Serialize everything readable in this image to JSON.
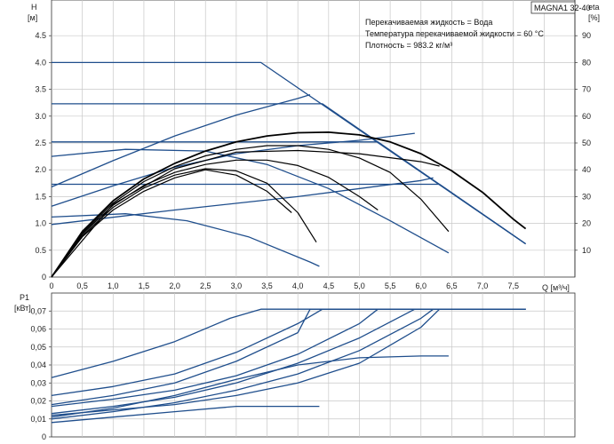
{
  "model_label": "MAGNA1 32-40",
  "info_lines": [
    "Перекачиваемая жидкость = Вода",
    "Температура перекачиваемой жидкости = 60 °C",
    "Плотность = 983.2 кг/м³"
  ],
  "colors": {
    "blue": "#1f4e8c",
    "black": "#000000",
    "grid": "#c8c8c8",
    "frame": "#333333"
  },
  "chart_data": [
    {
      "type": "line",
      "title": "",
      "ylabel_left": [
        "H",
        "[м]"
      ],
      "ylabel_right": [
        "eta",
        "[%]"
      ],
      "xlabel": "Q [м³/ч]",
      "xlim": [
        0,
        8.5
      ],
      "ylim": [
        0,
        5
      ],
      "ylim_right": [
        0,
        100
      ],
      "x_ticks": [
        "0",
        "0,5",
        "1,0",
        "1,5",
        "2,0",
        "2,5",
        "3,0",
        "3,5",
        "4,0",
        "4,5",
        "5,0",
        "5,5",
        "6,0",
        "6,5",
        "7,0",
        "7,5"
      ],
      "y_ticks": [
        "0",
        "0.5",
        "1.0",
        "1.5",
        "2.0",
        "2.5",
        "3.0",
        "3.5",
        "4.0",
        "4.5"
      ],
      "y_right_ticks": [
        "10",
        "20",
        "30",
        "40",
        "50",
        "60",
        "70",
        "80",
        "90"
      ],
      "grid": true,
      "series_blue_head": [
        {
          "x": [
            0,
            3.4,
            7.7
          ],
          "y": [
            4.0,
            4.0,
            0.62
          ]
        },
        {
          "x": [
            0,
            4.4,
            7.7
          ],
          "y": [
            3.23,
            3.23,
            0.62
          ]
        },
        {
          "x": [
            0,
            5.3,
            7.7
          ],
          "y": [
            2.52,
            2.52,
            0.62
          ]
        },
        {
          "x": [
            0,
            6.3,
            7.7
          ],
          "y": [
            1.73,
            1.73,
            0.62
          ]
        },
        {
          "x": [
            0,
            1.2,
            2.5,
            3.5,
            4.5,
            5.5,
            6.45
          ],
          "y": [
            2.25,
            2.38,
            2.35,
            2.1,
            1.65,
            1.05,
            0.45
          ]
        },
        {
          "x": [
            0,
            1.0,
            2.0,
            3.0,
            4.0,
            5.0,
            5.9
          ],
          "y": [
            1.32,
            1.7,
            2.05,
            2.3,
            2.45,
            2.55,
            2.68
          ]
        },
        {
          "x": [
            0,
            1.2,
            2.2,
            3.2,
            4.2,
            4.35
          ],
          "y": [
            1.12,
            1.18,
            1.05,
            0.75,
            0.28,
            0.2
          ]
        },
        {
          "x": [
            0,
            1.0,
            2.0,
            3.0,
            4.0,
            4.2
          ],
          "y": [
            1.68,
            2.17,
            2.63,
            3.02,
            3.33,
            3.4
          ]
        },
        {
          "x": [
            0,
            2.0,
            4.0,
            6.0,
            6.2
          ],
          "y": [
            0.98,
            1.25,
            1.5,
            1.8,
            1.85
          ]
        }
      ],
      "series_black_head": [
        {
          "x": [
            0,
            0.5,
            1.0,
            1.5,
            2.0,
            2.5,
            3.0,
            3.5,
            4.0,
            4.5,
            5.0,
            5.5,
            6.0,
            6.5,
            7.0,
            7.5,
            7.7
          ],
          "y": [
            0,
            0.85,
            1.42,
            1.83,
            2.12,
            2.35,
            2.52,
            2.63,
            2.69,
            2.7,
            2.65,
            2.52,
            2.3,
            1.98,
            1.58,
            1.08,
            0.9
          ]
        },
        {
          "x": [
            0,
            0.5,
            1.0,
            1.5,
            2.0,
            2.5,
            3.0,
            3.5,
            4.0,
            4.5,
            5.0,
            5.5,
            6.0,
            6.45
          ],
          "y": [
            0,
            0.82,
            1.38,
            1.78,
            2.06,
            2.26,
            2.38,
            2.45,
            2.45,
            2.38,
            2.22,
            1.95,
            1.45,
            0.85
          ]
        },
        {
          "x": [
            0,
            0.5,
            1.0,
            1.5,
            2.0,
            2.5,
            3.0,
            3.5,
            4.0,
            4.5,
            5.0,
            5.3
          ],
          "y": [
            0,
            0.8,
            1.34,
            1.71,
            1.95,
            2.1,
            2.18,
            2.18,
            2.08,
            1.86,
            1.5,
            1.25
          ]
        },
        {
          "x": [
            0,
            0.5,
            1.0,
            1.5,
            2.0,
            2.5,
            3.0,
            3.5,
            3.9
          ],
          "y": [
            0,
            0.75,
            1.25,
            1.6,
            1.85,
            2.0,
            1.9,
            1.6,
            1.2
          ]
        },
        {
          "x": [
            0,
            0.5,
            1.0,
            1.5,
            2.0,
            2.5,
            3.0,
            3.5,
            4.0,
            4.3
          ],
          "y": [
            0,
            0.77,
            1.3,
            1.66,
            1.9,
            2.02,
            1.98,
            1.75,
            1.2,
            0.65
          ]
        },
        {
          "x": [
            0,
            1.0,
            2.0,
            3.0,
            4.0,
            5.0,
            6.0,
            6.3
          ],
          "y": [
            0,
            1.36,
            2.02,
            2.33,
            2.36,
            2.3,
            2.15,
            2.07
          ]
        }
      ]
    },
    {
      "type": "line",
      "ylabel": [
        "P1",
        "[кВт]"
      ],
      "xlim": [
        0,
        8.5
      ],
      "ylim": [
        0,
        0.08
      ],
      "y_ticks": [
        "0",
        "0,01",
        "0,02",
        "0,03",
        "0,04",
        "0,05",
        "0,06",
        "0,07"
      ],
      "grid": true,
      "series": [
        {
          "x": [
            0,
            1.0,
            2.0,
            2.9,
            3.4,
            7.7
          ],
          "y": [
            0.033,
            0.042,
            0.053,
            0.066,
            0.071,
            0.071
          ]
        },
        {
          "x": [
            0,
            1.0,
            2.0,
            3.0,
            4.0,
            4.4,
            7.7
          ],
          "y": [
            0.023,
            0.028,
            0.035,
            0.047,
            0.063,
            0.071,
            0.071
          ]
        },
        {
          "x": [
            0,
            1.0,
            2.0,
            3.0,
            4.0,
            5.0,
            5.3,
            7.7
          ],
          "y": [
            0.017,
            0.021,
            0.026,
            0.034,
            0.046,
            0.063,
            0.071,
            0.071
          ]
        },
        {
          "x": [
            0,
            1.0,
            2.0,
            3.0,
            4.0,
            5.0,
            6.0,
            6.3,
            7.7
          ],
          "y": [
            0.012,
            0.015,
            0.018,
            0.023,
            0.03,
            0.041,
            0.061,
            0.071,
            0.071
          ]
        },
        {
          "x": [
            0,
            1.0,
            2.0,
            3.0,
            4.0,
            5.0,
            6.0,
            6.45
          ],
          "y": [
            0.011,
            0.016,
            0.023,
            0.032,
            0.04,
            0.044,
            0.045,
            0.045
          ]
        },
        {
          "x": [
            0,
            1.0,
            2.0,
            3.0,
            4.0,
            4.35
          ],
          "y": [
            0.008,
            0.011,
            0.014,
            0.017,
            0.017,
            0.017
          ]
        },
        {
          "x": [
            0,
            1.0,
            2.0,
            3.0,
            4.0,
            5.0,
            5.9,
            7.7
          ],
          "y": [
            0.013,
            0.017,
            0.022,
            0.03,
            0.041,
            0.055,
            0.071,
            0.071
          ]
        },
        {
          "x": [
            0,
            1.0,
            2.0,
            3.0,
            4.0,
            4.2,
            7.7
          ],
          "y": [
            0.018,
            0.023,
            0.03,
            0.042,
            0.058,
            0.071,
            0.071
          ]
        },
        {
          "x": [
            0,
            1.0,
            2.0,
            3.0,
            4.0,
            5.0,
            6.0,
            6.2,
            7.7
          ],
          "y": [
            0.01,
            0.014,
            0.019,
            0.026,
            0.035,
            0.048,
            0.066,
            0.071,
            0.071
          ]
        }
      ]
    }
  ]
}
